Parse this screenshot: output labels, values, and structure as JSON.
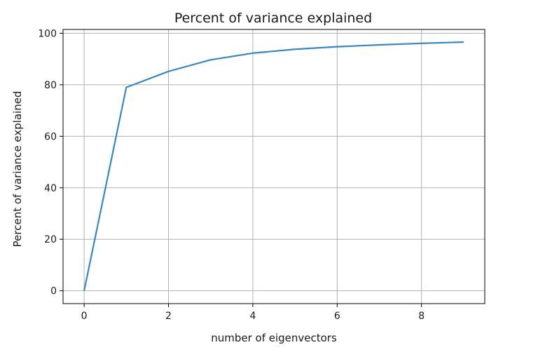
{
  "chart_data": {
    "type": "line",
    "title": "Percent of variance explained",
    "xlabel": "number of eigenvectors",
    "ylabel": "Percent of variance explained",
    "xlim": [
      -0.5,
      9.5
    ],
    "ylim": [
      -5,
      101.5
    ],
    "xticks": [
      0,
      2,
      4,
      6,
      8
    ],
    "yticks": [
      0,
      20,
      40,
      60,
      80,
      100
    ],
    "grid": true,
    "legend": "none",
    "series": [
      {
        "color": "#3a87c0",
        "x": [
          0,
          1,
          2,
          3,
          4,
          5,
          6,
          7,
          8,
          9
        ],
        "y": [
          0,
          79.0,
          85.2,
          89.7,
          92.3,
          93.8,
          94.8,
          95.5,
          96.1,
          96.6
        ]
      }
    ]
  }
}
